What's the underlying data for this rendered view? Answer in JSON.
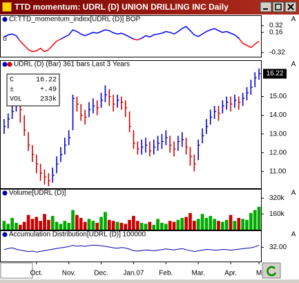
{
  "window": {
    "title": "TTD momentum: UDRL (D) UNION DRILLING INC Daily"
  },
  "chart_data": [
    {
      "type": "line",
      "title": "CI:TTD_momentum_index[UDRL (D)] BOP",
      "zero_label": "0",
      "color": "#0000ff",
      "negative_color": "#ff0000",
      "ylim": [
        -0.42,
        0.37
      ],
      "yticks": [
        0.32,
        0.16,
        -0.32
      ],
      "values": [
        0.05,
        0.1,
        0.12,
        0.08,
        -0.05,
        -0.15,
        -0.25,
        -0.3,
        -0.28,
        -0.22,
        -0.3,
        -0.25,
        -0.15,
        -0.05,
        0.0,
        0.05,
        0.1,
        0.22,
        0.18,
        0.12,
        0.08,
        0.12,
        0.16,
        0.14,
        0.18,
        0.22,
        0.2,
        0.15,
        0.12,
        0.14,
        0.1,
        0.05,
        0.0,
        -0.02,
        0.02,
        0.08,
        0.05,
        0.1,
        0.12,
        0.14,
        0.18,
        0.16,
        0.12,
        0.18,
        0.25,
        0.3,
        0.2,
        0.1,
        0.06,
        0.12,
        0.18,
        0.22,
        0.25,
        0.2,
        0.16,
        0.18,
        0.14,
        0.1,
        0.02,
        -0.1,
        -0.15,
        -0.2,
        -0.12,
        -0.05
      ]
    },
    {
      "type": "ohlc",
      "title": "UDRL (D) (Bar) 361 bars   Last 3 Years",
      "up_color": "#0000cc",
      "down_color": "#cc0000",
      "info": [
        [
          "C",
          "16.22"
        ],
        [
          "±",
          "+.49"
        ],
        [
          "VOL",
          "233k"
        ]
      ],
      "last_value": 16.22,
      "categories": [
        null,
        null,
        null,
        null,
        null,
        null,
        null,
        null,
        "Oct.",
        null,
        null,
        null,
        null,
        null,
        null,
        null,
        "Nov.",
        null,
        null,
        null,
        null,
        null,
        null,
        null,
        "Dec.",
        null,
        null,
        null,
        null,
        null,
        null,
        null,
        "Jan.07",
        null,
        null,
        null,
        null,
        null,
        null,
        null,
        "Feb.",
        null,
        null,
        null,
        null,
        null,
        null,
        null,
        "Mar.",
        null,
        null,
        null,
        null,
        null,
        null,
        null,
        "Apr.",
        null,
        null,
        null,
        null,
        null,
        null,
        "M"
      ],
      "ylim": [
        10.1,
        16.5
      ],
      "yticks": [
        {
          "value": 11,
          "label": "11.00"
        },
        {
          "value": 12,
          "label": "12.00"
        },
        {
          "value": 13,
          "label": "13.00"
        },
        {
          "value": 14,
          "label": "14.00"
        },
        {
          "value": 15,
          "label": "15.00"
        }
      ],
      "high": [
        13.8,
        14.1,
        14.5,
        14.9,
        14.7,
        14.0,
        13.1,
        12.4,
        11.9,
        11.4,
        11.1,
        10.9,
        11.2,
        11.8,
        12.3,
        12.8,
        13.2,
        15.1,
        15.0,
        14.6,
        14.3,
        14.7,
        14.9,
        14.8,
        15.2,
        15.6,
        15.4,
        15.1,
        15.1,
        15.0,
        14.8,
        14.2,
        13.2,
        12.6,
        12.7,
        12.8,
        12.6,
        12.7,
        12.9,
        13.0,
        13.2,
        12.9,
        12.6,
        12.9,
        13.1,
        12.8,
        12.3,
        11.9,
        12.7,
        13.3,
        13.8,
        14.3,
        14.5,
        14.5,
        14.8,
        15.0,
        15.0,
        15.1,
        15.0,
        15.2,
        15.5,
        15.9,
        16.3,
        16.5
      ],
      "low": [
        13.0,
        13.3,
        13.8,
        14.2,
        13.6,
        12.9,
        12.1,
        11.5,
        10.9,
        10.5,
        10.3,
        10.2,
        10.4,
        10.9,
        11.5,
        11.9,
        12.4,
        13.2,
        14.2,
        13.7,
        13.5,
        13.9,
        14.1,
        14.0,
        14.4,
        14.7,
        14.5,
        14.2,
        14.4,
        14.3,
        13.9,
        13.1,
        12.2,
        11.9,
        11.9,
        12.0,
        11.8,
        11.9,
        12.1,
        12.2,
        12.4,
        12.0,
        11.8,
        12.1,
        12.3,
        11.9,
        11.3,
        11.0,
        11.6,
        12.5,
        13.0,
        13.5,
        13.8,
        13.7,
        14.1,
        14.3,
        14.2,
        14.4,
        14.3,
        14.5,
        14.8,
        15.1,
        15.5,
        15.9
      ],
      "close": [
        13.4,
        13.8,
        14.2,
        14.6,
        14.3,
        13.2,
        12.4,
        11.9,
        11.4,
        10.9,
        10.7,
        10.5,
        10.8,
        11.4,
        11.9,
        12.4,
        12.8,
        14.9,
        14.6,
        14.0,
        13.9,
        14.3,
        14.5,
        14.4,
        14.8,
        15.1,
        15.0,
        14.6,
        14.8,
        14.7,
        14.4,
        13.4,
        12.5,
        12.2,
        12.3,
        12.4,
        12.1,
        12.3,
        12.5,
        12.6,
        12.8,
        12.4,
        12.2,
        12.6,
        12.7,
        12.3,
        11.8,
        11.4,
        12.4,
        12.9,
        13.4,
        13.9,
        14.2,
        14.1,
        14.5,
        14.7,
        14.6,
        14.8,
        14.7,
        14.9,
        15.2,
        15.5,
        16.0,
        16.22
      ]
    },
    {
      "type": "bar",
      "title": "Volume[UDRL (D)]",
      "up_color": "#00aa00",
      "down_color": "#cc0000",
      "ylim": [
        0,
        330000
      ],
      "yticks": [
        {
          "value": 320000,
          "label": "320k"
        },
        {
          "value": 160000,
          "label": "160k"
        }
      ],
      "values": [
        90000,
        60000,
        120000,
        70000,
        50000,
        80000,
        150000,
        110000,
        130000,
        90000,
        160000,
        100000,
        140000,
        80000,
        60000,
        90000,
        70000,
        200000,
        150000,
        120000,
        80000,
        110000,
        90000,
        70000,
        130000,
        180000,
        100000,
        90000,
        80000,
        70000,
        60000,
        100000,
        140000,
        90000,
        70000,
        60000,
        80000,
        50000,
        110000,
        70000,
        60000,
        90000,
        80000,
        100000,
        120000,
        130000,
        170000,
        90000,
        110000,
        160000,
        120000,
        140000,
        110000,
        90000,
        80000,
        100000,
        150000,
        90000,
        120000,
        110000,
        100000,
        170000,
        200000,
        233000
      ]
    },
    {
      "type": "line",
      "title": "Accumulation Distribution[UDRL (D)] 100000",
      "color": "#0000aa",
      "ylim": [
        26,
        35.6
      ],
      "yticks": [
        {
          "value": 32,
          "label": "32.00"
        }
      ],
      "values": [
        31,
        31.5,
        31.8,
        31.2,
        30.8,
        30.5,
        30.2,
        30.4,
        30.0,
        30.3,
        30.6,
        30.9,
        31.2,
        31.5,
        31.8,
        32.0,
        32.3,
        32.8,
        32.5,
        32.6,
        32.4,
        32.7,
        32.9,
        32.8,
        32.6,
        32.4,
        32.1,
        31.8,
        31.6,
        31.9,
        31.7,
        31.2,
        30.6,
        30.4,
        30.6,
        30.9,
        30.7,
        30.5,
        30.8,
        31.0,
        31.3,
        31.1,
        30.9,
        31.2,
        31.4,
        31.0,
        30.6,
        30.2,
        30.5,
        30.8,
        31.1,
        31.0,
        30.8,
        30.9,
        31.1,
        31.0,
        30.8,
        31.0,
        31.2,
        31.4,
        31.6,
        31.8,
        32.2,
        32.8
      ]
    }
  ]
}
